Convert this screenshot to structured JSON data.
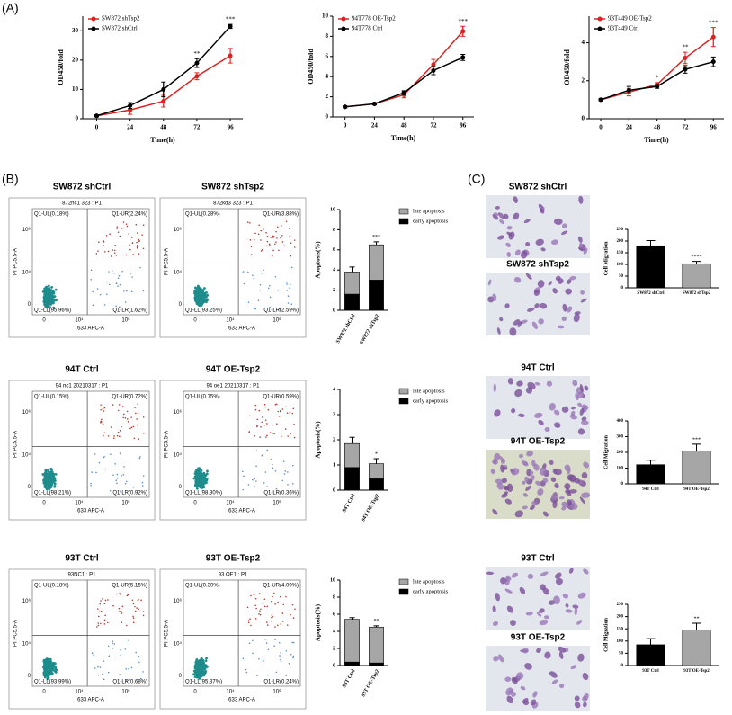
{
  "panel_labels": [
    "(A)",
    "(B)",
    "(C)"
  ],
  "chart_data": [
    {
      "type": "line",
      "x": [
        0,
        24,
        48,
        72,
        96
      ],
      "xlim": [
        -10,
        105
      ],
      "xticks": [
        0,
        24,
        48,
        72,
        96
      ],
      "ylim": [
        0,
        35
      ],
      "yticks": [
        0,
        10,
        20,
        30
      ],
      "y_label": "OD450/fold",
      "x_label": "Time(h)",
      "annotations": [
        null,
        null,
        null,
        "**",
        "***"
      ],
      "series": [
        {
          "name": "SW872 shTsp2",
          "color": "#e02020",
          "values": [
            1,
            3,
            6,
            14.5,
            21.5
          ],
          "errors": [
            0.3,
            1.5,
            2,
            1.2,
            2.5
          ]
        },
        {
          "name": "SW872 shCtrl",
          "color": "#000000",
          "values": [
            1,
            4.5,
            10,
            19,
            31.5
          ],
          "errors": [
            0.3,
            1,
            2.5,
            1.5,
            0.7
          ]
        }
      ]
    },
    {
      "type": "line",
      "x": [
        0,
        24,
        48,
        72,
        96
      ],
      "xlim": [
        -10,
        105
      ],
      "xticks": [
        0,
        24,
        48,
        72,
        96
      ],
      "ylim": [
        0,
        10
      ],
      "yticks": [
        0,
        2,
        4,
        6,
        8,
        10
      ],
      "y_label": "OD450/fold",
      "x_label": "Time(h)",
      "annotations": [
        null,
        null,
        null,
        null,
        "***"
      ],
      "series": [
        {
          "name": "94T778 OE-Tsp2",
          "color": "#e02020",
          "values": [
            1,
            1.3,
            2.2,
            5.2,
            8.5
          ],
          "errors": [
            0.1,
            0.1,
            0.3,
            0.5,
            0.5
          ]
        },
        {
          "name": "94T778 Ctrl",
          "color": "#000000",
          "values": [
            1,
            1.3,
            2.4,
            4.6,
            5.9
          ],
          "errors": [
            0.1,
            0.1,
            0.2,
            0.4,
            0.3
          ]
        }
      ]
    },
    {
      "type": "line",
      "x": [
        0,
        24,
        48,
        72,
        96
      ],
      "xlim": [
        -10,
        105
      ],
      "xticks": [
        0,
        24,
        48,
        72,
        96
      ],
      "ylim": [
        0,
        5.4
      ],
      "yticks": [
        0,
        2,
        4
      ],
      "y_label": "OD450/fold",
      "x_label": "Time(h)",
      "annotations": [
        null,
        null,
        "*",
        "**",
        "***"
      ],
      "series": [
        {
          "name": "93T449 OE-Tsp2",
          "color": "#e02020",
          "values": [
            1,
            1.4,
            1.8,
            3.2,
            4.3
          ],
          "errors": [
            0.05,
            0.2,
            0.1,
            0.3,
            0.5
          ]
        },
        {
          "name": "93T449 Ctrl",
          "color": "#000000",
          "values": [
            1,
            1.5,
            1.7,
            2.6,
            3.0
          ],
          "errors": [
            0.05,
            0.2,
            0.1,
            0.2,
            0.25
          ]
        }
      ]
    },
    {
      "type": "stacked_bar",
      "categories": [
        "SW872 shCtrl",
        "SW872 shTsp2"
      ],
      "ylim": [
        0,
        10
      ],
      "yticks": [
        0,
        2,
        4,
        6,
        8,
        10
      ],
      "y_label": "Apoptosis(%)",
      "annotations": [
        null,
        "***"
      ],
      "series": [
        {
          "name": "late apoptosis",
          "color": "#a6a6a6",
          "values": [
            2.2,
            3.5
          ],
          "errors": [
            0.5,
            0.3
          ]
        },
        {
          "name": "early apoptosis",
          "color": "#000000",
          "values": [
            1.6,
            3.0
          ]
        }
      ]
    },
    {
      "type": "stacked_bar",
      "categories": [
        "94T Ctrl",
        "94T OE-Tsp2"
      ],
      "ylim": [
        0,
        4
      ],
      "yticks": [
        0,
        1,
        2,
        3,
        4
      ],
      "y_label": "Apoptosis(%)",
      "annotations": [
        null,
        "*"
      ],
      "series": [
        {
          "name": "late apoptosis",
          "color": "#a6a6a6",
          "values": [
            0.95,
            0.6
          ],
          "errors": [
            0.25,
            0.2
          ]
        },
        {
          "name": "early apoptosis",
          "color": "#000000",
          "values": [
            0.9,
            0.45
          ]
        }
      ]
    },
    {
      "type": "stacked_bar",
      "categories": [
        "93T Ctrl",
        "93T OE-Tsp2"
      ],
      "ylim": [
        0,
        10
      ],
      "yticks": [
        0,
        2,
        4,
        6,
        8,
        10
      ],
      "y_label": "Apoptosis(%)",
      "annotations": [
        null,
        "**"
      ],
      "series": [
        {
          "name": "late apoptosis",
          "color": "#a6a6a6",
          "values": [
            5.0,
            4.2
          ],
          "errors": [
            0.2,
            0.15
          ]
        },
        {
          "name": "early apoptosis",
          "color": "#000000",
          "values": [
            0.4,
            0.3
          ]
        }
      ]
    },
    {
      "type": "bar",
      "categories": [
        "SW872 shCtrl",
        "SW872 shTsp2"
      ],
      "values": [
        180,
        103
      ],
      "errors": [
        22,
        10
      ],
      "colors": [
        "#000000",
        "#a6a6a6"
      ],
      "ylim": [
        0,
        250
      ],
      "yticks": [
        0,
        50,
        100,
        150,
        200,
        250
      ],
      "y_label": "Cell Migration",
      "annotations": [
        null,
        "****"
      ]
    },
    {
      "type": "bar",
      "categories": [
        "94T Ctrl",
        "94T OE-Tsp2"
      ],
      "values": [
        122,
        210
      ],
      "errors": [
        28,
        42
      ],
      "colors": [
        "#000000",
        "#a6a6a6"
      ],
      "ylim": [
        0,
        400
      ],
      "yticks": [
        0,
        100,
        200,
        300,
        400
      ],
      "y_label": "Cell Migration",
      "annotations": [
        null,
        "***"
      ]
    },
    {
      "type": "bar",
      "categories": [
        "93T Ctrl",
        "93T OE-Tsp2"
      ],
      "values": [
        85,
        145
      ],
      "errors": [
        25,
        28
      ],
      "colors": [
        "#000000",
        "#a6a6a6"
      ],
      "ylim": [
        0,
        250
      ],
      "yticks": [
        0,
        50,
        100,
        150,
        200,
        250
      ],
      "y_label": "Cell Migration",
      "annotations": [
        null,
        "**"
      ]
    }
  ],
  "flow_plots": {
    "x_label": "633 APC-A",
    "y_label": "PI PC5.5-A",
    "ticks": [
      "0",
      "10⁴",
      "10⁶"
    ],
    "plots": [
      {
        "title": "SW872 shCtrl",
        "header": "872nc1 323 : P1",
        "quadrants": [
          "Q1-UL(0.18%)",
          "Q1-UR(2.24%)",
          "Q1-LL(95.96%)",
          "Q1-LR(1.62%)"
        ]
      },
      {
        "title": "SW872 shTsp2",
        "header": "872kd3 323 : P1",
        "quadrants": [
          "Q1-UL(0.28%)",
          "Q1-UR(3.88%)",
          "Q1-LL(93.25%)",
          "Q1-LR(2.59%)"
        ]
      },
      {
        "title": "94T Ctrl",
        "header": "94 nc1 20210317 : P1",
        "quadrants": [
          "Q1-UL(0.15%)",
          "Q1-UR(0.72%)",
          "Q1-LL(98.21%)",
          "Q1-LR(0.92%)"
        ]
      },
      {
        "title": "94T OE-Tsp2",
        "header": "94 oe1 20210317 : P1",
        "quadrants": [
          "Q1-UL(0.75%)",
          "Q1-UR(0.59%)",
          "Q1-LL(98.30%)",
          "Q1-LR(0.36%)"
        ]
      },
      {
        "title": "93T Ctrl",
        "header": "93NC1 : P1",
        "quadrants": [
          "Q1-UL(0.18%)",
          "Q1-UR(5.15%)",
          "Q1-LL(93.99%)",
          "Q1-LR(0.68%)"
        ]
      },
      {
        "title": "93T OE-Tsp2",
        "header": "93 OE1 : P1",
        "quadrants": [
          "Q1-UL(0.30%)",
          "Q1-UR(4.09%)",
          "Q1-LL(95.37%)",
          "Q1-LR(0.24%)"
        ]
      }
    ]
  },
  "micrographs": [
    "SW872 shCtrl",
    "SW872 shTsp2",
    "94T Ctrl",
    "94T OE-Tsp2",
    "93T Ctrl",
    "93T OE-Tsp2"
  ]
}
